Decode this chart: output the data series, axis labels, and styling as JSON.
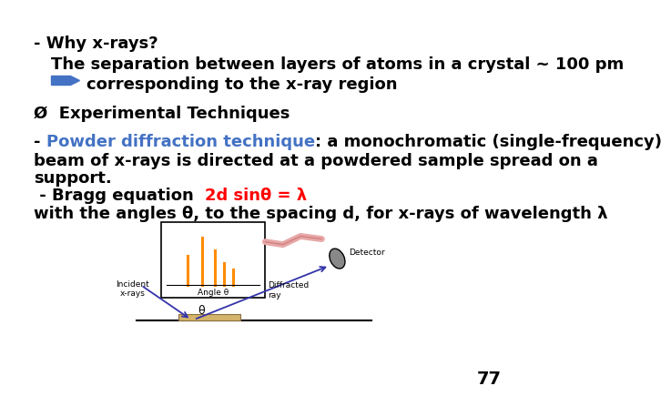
{
  "background_color": "#ffffff",
  "page_number": "77",
  "line1": "- Why x-rays?",
  "line2": "The separation between layers of atoms in a crystal ~ 100 pm",
  "line3": "corresponding to the x-ray region",
  "line4": "Ø  Experimental Techniques",
  "line5_prefix": "- ",
  "line5_blue": "Powder diffraction technique",
  "line5_suffix": ": a monochromatic (single-frequency)",
  "line6": "beam of x-rays is directed at a powdered sample spread on a",
  "line7": "support.",
  "line8_prefix": " - Bragg equation  ",
  "line8_red": "2d sinθ = λ",
  "line9": "with the angles θ, to the spacing d, for x-rays of wavelength λ",
  "arrow_color": "#4472C4",
  "blue_color": "#4472C4",
  "red_color": "#FF0000",
  "black_color": "#000000",
  "font_size_main": 13,
  "font_size_pagenum": 14
}
